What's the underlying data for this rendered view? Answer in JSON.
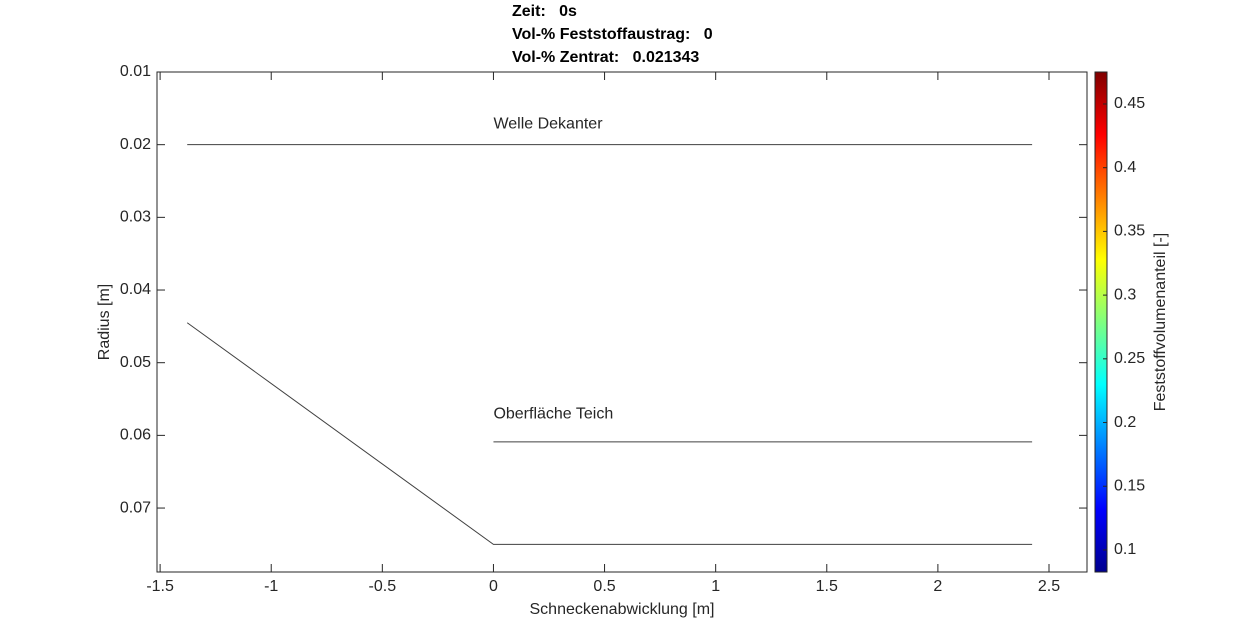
{
  "chart_data": {
    "type": "line",
    "title_lines": [
      "Zeit:   0s",
      "Vol-% Feststoffaustrag:   0",
      "Vol-% Zentrat:   0.021343"
    ],
    "x_label": "Schneckenabwicklung [m]",
    "y_label": "Radius [m]",
    "xlim": [
      -1.514,
      2.671
    ],
    "ylim": [
      0.01,
      0.0788
    ],
    "y_reversed": true,
    "xticks": [
      -1.5,
      -1,
      -0.5,
      0,
      0.5,
      1,
      1.5,
      2,
      2.5
    ],
    "yticks": [
      0.01,
      0.02,
      0.03,
      0.04,
      0.05,
      0.06,
      0.07
    ],
    "series": [
      {
        "color": "#404040",
        "x": [
          -1.378,
          2.424
        ],
        "values": [
          0.02,
          0.02
        ]
      },
      {
        "color": "#404040",
        "x": [
          0,
          2.424
        ],
        "values": [
          0.0609,
          0.0609
        ]
      },
      {
        "color": "#404040",
        "x": [
          -1.378,
          0,
          2.424
        ],
        "values": [
          0.0445,
          0.075,
          0.075
        ]
      }
    ],
    "annotations": [
      {
        "text": "Welle Dekanter",
        "x": 0,
        "y": 0.0172
      },
      {
        "text": "Oberfläche Teich",
        "x": 0,
        "y": 0.0571
      }
    ],
    "colorbar": {
      "label": "Feststoffvolumenanteil [-]",
      "colormap": "jet",
      "clim": [
        0.0827,
        0.4751
      ],
      "ticks": [
        0.1,
        0.15,
        0.2,
        0.25,
        0.3,
        0.35,
        0.4,
        0.45
      ]
    }
  }
}
